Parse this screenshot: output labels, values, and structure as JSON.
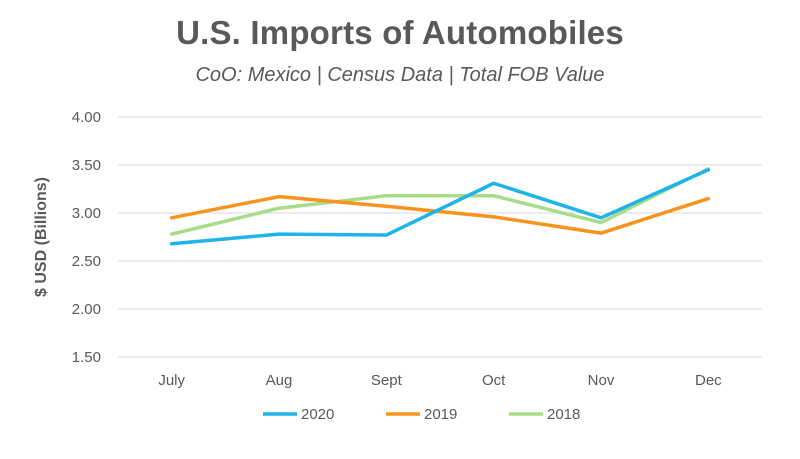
{
  "chart_data": {
    "type": "line",
    "title": "U.S. Imports of Automobiles",
    "subtitle": "CoO: Mexico | Census Data | Total FOB Value",
    "ylabel": "$ USD (Billions)",
    "xlabel": "",
    "categories": [
      "July",
      "Aug",
      "Sept",
      "Oct",
      "Nov",
      "Dec"
    ],
    "ylim": [
      1.5,
      4.0
    ],
    "yticks": [
      "1.50",
      "2.00",
      "2.50",
      "3.00",
      "3.50",
      "4.00"
    ],
    "grid": true,
    "legend_position": "bottom",
    "series": [
      {
        "name": "2020",
        "color": "#1fb4e8",
        "values": [
          2.68,
          2.78,
          2.77,
          3.31,
          2.95,
          3.45
        ]
      },
      {
        "name": "2019",
        "color": "#f7931e",
        "values": [
          2.95,
          3.17,
          3.07,
          2.96,
          2.79,
          3.15
        ]
      },
      {
        "name": "2018",
        "color": "#a9dc8a",
        "values": [
          2.78,
          3.05,
          3.18,
          3.18,
          2.9,
          3.46
        ]
      }
    ]
  }
}
